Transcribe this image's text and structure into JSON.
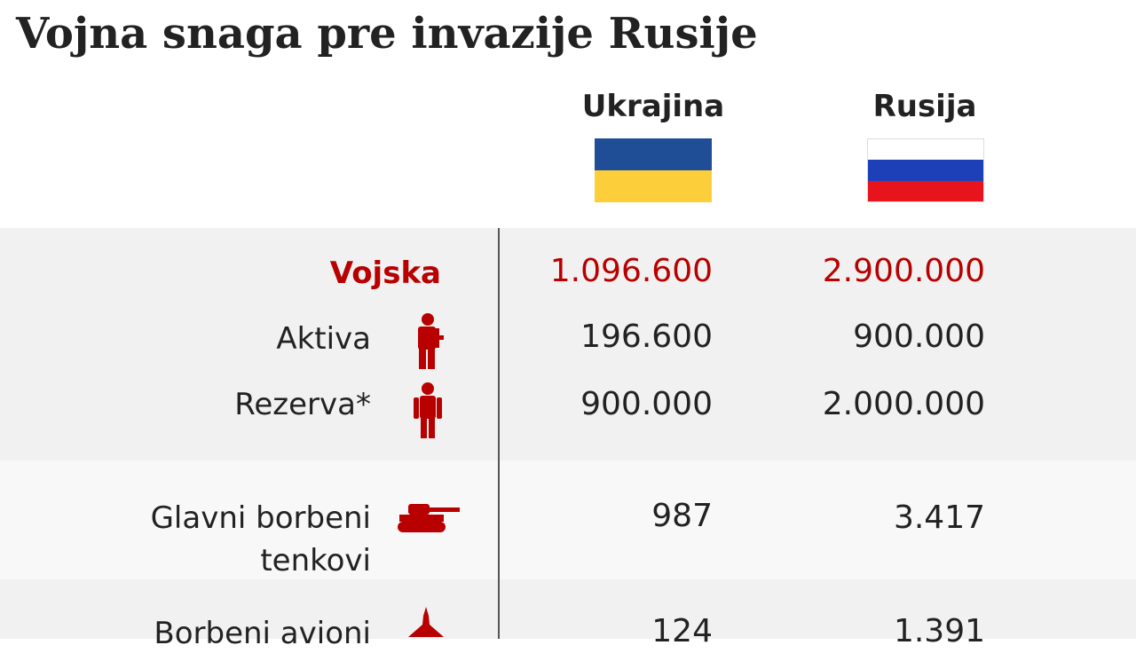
{
  "title": "Vojna snaga pre invazije Rusije",
  "countries": {
    "ukraine": {
      "name": "Ukrajina",
      "flag_colors": [
        "#1f4e96",
        "#fccf3a"
      ]
    },
    "russia": {
      "name": "Rusija",
      "flag_colors": [
        "#ffffff",
        "#1d3fb8",
        "#e8141c"
      ]
    }
  },
  "colors": {
    "accent_red": "#b80000",
    "band_dark": "#f1f1f1",
    "band_light": "#f8f8f8"
  },
  "rows": {
    "troops": {
      "label": "Vojska",
      "ukraine": "1.096.600",
      "russia": "2.900.000"
    },
    "active": {
      "label": "Aktiva",
      "icon": "soldier-icon",
      "ukraine": "196.600",
      "russia": "900.000"
    },
    "reserve": {
      "label": "Rezerva*",
      "icon": "person-icon",
      "ukraine": "900.000",
      "russia": "2.000.000"
    },
    "tanks": {
      "label_line1": "Glavni borbeni",
      "label_line2": "tenkovi",
      "icon": "tank-icon",
      "ukraine": "987",
      "russia": "3.417"
    },
    "aircraft": {
      "label": "Borbeni avioni",
      "icon": "aircraft-icon",
      "ukraine": "124",
      "russia": "1.391"
    }
  }
}
